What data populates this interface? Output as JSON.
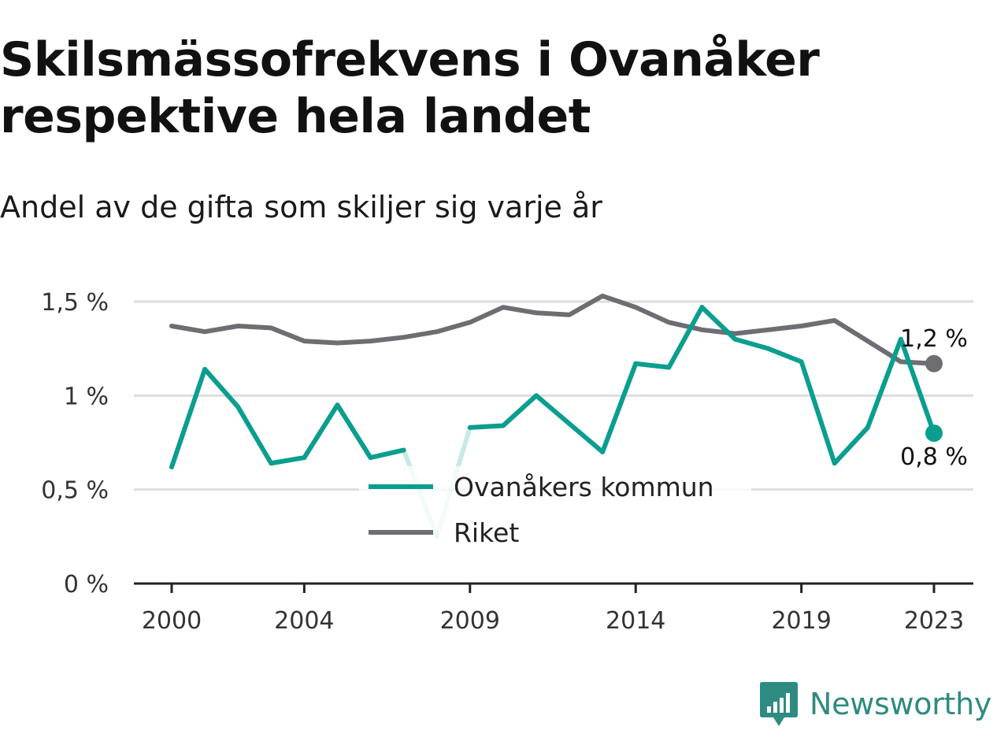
{
  "title": "Skilsmässofrekvens i Ovanåker respektive hela landet",
  "subtitle": "Andel av de gifta som skiljer sig varje år",
  "logo_text": "Newsworthy",
  "colors": {
    "ovanaker": "#0a9e8f",
    "riket": "#6e6d73",
    "grid": "#dddddd",
    "axis": "#222222",
    "logo": "#2e8b82"
  },
  "chart_data": {
    "type": "line",
    "x": [
      2000,
      2001,
      2002,
      2003,
      2004,
      2005,
      2006,
      2007,
      2008,
      2009,
      2010,
      2011,
      2012,
      2013,
      2014,
      2015,
      2016,
      2017,
      2018,
      2019,
      2020,
      2021,
      2022,
      2023
    ],
    "series": [
      {
        "name": "Ovanåkers kommun",
        "color": "#0a9e8f",
        "values": [
          0.62,
          1.14,
          0.94,
          0.64,
          0.67,
          0.95,
          0.67,
          0.71,
          0.25,
          0.83,
          0.84,
          1.0,
          0.85,
          0.7,
          1.17,
          1.15,
          1.47,
          1.3,
          1.25,
          1.18,
          0.64,
          0.83,
          1.3,
          0.8
        ],
        "faded_years": [
          2007,
          2008,
          2009
        ]
      },
      {
        "name": "Riket",
        "color": "#6e6d73",
        "values": [
          1.37,
          1.34,
          1.37,
          1.36,
          1.29,
          1.28,
          1.29,
          1.31,
          1.34,
          1.39,
          1.47,
          1.44,
          1.43,
          1.53,
          1.47,
          1.39,
          1.35,
          1.33,
          1.35,
          1.37,
          1.4,
          1.29,
          1.18,
          1.17
        ]
      }
    ],
    "end_labels": {
      "Riket": "1,2 %",
      "Ovanåkers kommun": "0,8 %"
    },
    "y_ticks": [
      0,
      0.5,
      1,
      1.5
    ],
    "y_tick_labels": [
      "0 %",
      "0,5 %",
      "1 %",
      "1,5 %"
    ],
    "x_ticks": [
      2000,
      2004,
      2009,
      2014,
      2019,
      2023
    ],
    "x_tick_labels": [
      "2000",
      "2004",
      "2009",
      "2014",
      "2019",
      "2023"
    ],
    "ylim": [
      0,
      1.6
    ],
    "xlim": [
      2000,
      2023
    ],
    "grid": true,
    "legend_position": "bottom-center"
  }
}
